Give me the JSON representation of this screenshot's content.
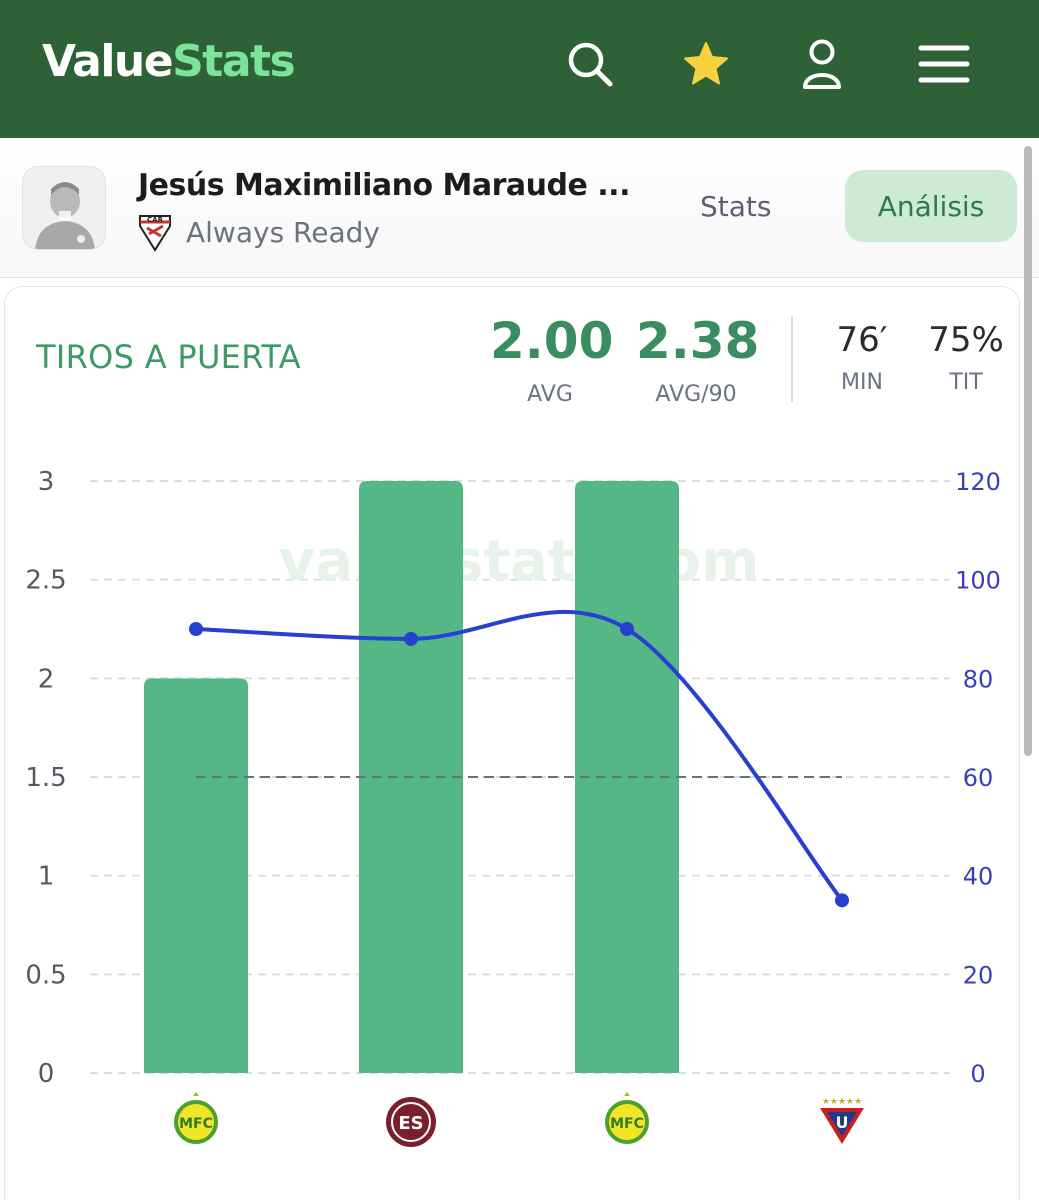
{
  "app": {
    "logo_part1": "Value",
    "logo_part2": "Stats"
  },
  "icons": [
    "search-icon",
    "star-icon",
    "user-icon",
    "menu-icon"
  ],
  "colors": {
    "brand_green": "#2e6236",
    "bar": "#55b785",
    "line": "#2740cf",
    "accent": "#7be39a"
  },
  "player": {
    "name": "Jesús Maximiliano Maraude ...",
    "team": "Always Ready",
    "tab_stats": "Stats",
    "tab_analysis": "Análisis"
  },
  "stat": {
    "title": "TIROS A PUERTA",
    "avg_value": "2.00",
    "avg_label": "AVG",
    "avg90_value": "2.38",
    "avg90_label": "AVG/90",
    "min_value": "76′",
    "min_label": "MIN",
    "tit_value": "75%",
    "tit_label": "TIT"
  },
  "chart_data": {
    "type": "bar",
    "categories": [
      "team-crest-1",
      "team-crest-2",
      "team-crest-3",
      "team-crest-4"
    ],
    "series": [
      {
        "type": "bar",
        "axis": "left",
        "values": [
          2,
          3,
          3,
          0
        ]
      },
      {
        "type": "line",
        "axis": "right",
        "values": [
          90,
          88,
          90,
          35
        ]
      }
    ],
    "reference_line": {
      "axis": "left",
      "value": 1.5,
      "style": "dashed"
    },
    "left_axis": {
      "ylim": [
        0,
        3
      ],
      "ticks": [
        "0",
        "0.5",
        "1",
        "1.5",
        "2",
        "2.5",
        "3"
      ]
    },
    "right_axis": {
      "ylim": [
        0,
        120
      ],
      "ticks": [
        "0",
        "20",
        "40",
        "60",
        "80",
        "100",
        "120"
      ]
    },
    "watermark": "valuestats.com",
    "grid": true
  }
}
